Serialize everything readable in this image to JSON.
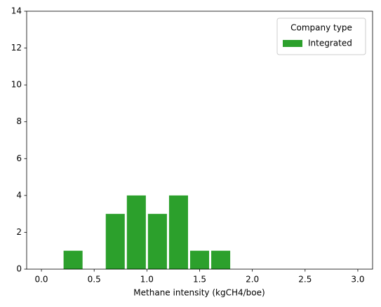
{
  "chart_data": {
    "type": "histogram",
    "x_label": "Methane intensity (kgCH4/boe)",
    "bins": [
      0,
      0.2,
      0.4,
      0.6,
      0.8,
      1.0,
      1.2,
      1.4,
      1.6,
      1.8,
      2.0,
      2.2,
      2.4,
      2.6,
      2.8,
      3.0
    ],
    "series": [
      {
        "name": "Integrated",
        "color": "#2ca02c",
        "values": [
          0,
          1,
          0,
          3,
          4,
          3,
          4,
          1,
          1,
          0,
          0,
          0,
          0,
          0,
          0
        ]
      }
    ],
    "legend_title": "Company type",
    "legend": "upper right",
    "xlim": [
      -0.14,
      3.14
    ],
    "xticks": [
      {
        "value": 0,
        "label": "0.0"
      },
      {
        "value": 0.5,
        "label": "0.5"
      },
      {
        "value": 1,
        "label": "1.0"
      },
      {
        "value": 1.5,
        "label": "1.5"
      },
      {
        "value": 2,
        "label": "2.0"
      },
      {
        "value": 2.5,
        "label": "2.5"
      },
      {
        "value": 3,
        "label": "3.0"
      }
    ],
    "ylim": [
      0,
      14
    ],
    "yticks": [
      0,
      2,
      4,
      6,
      8,
      10,
      12,
      14
    ],
    "grid": false
  }
}
